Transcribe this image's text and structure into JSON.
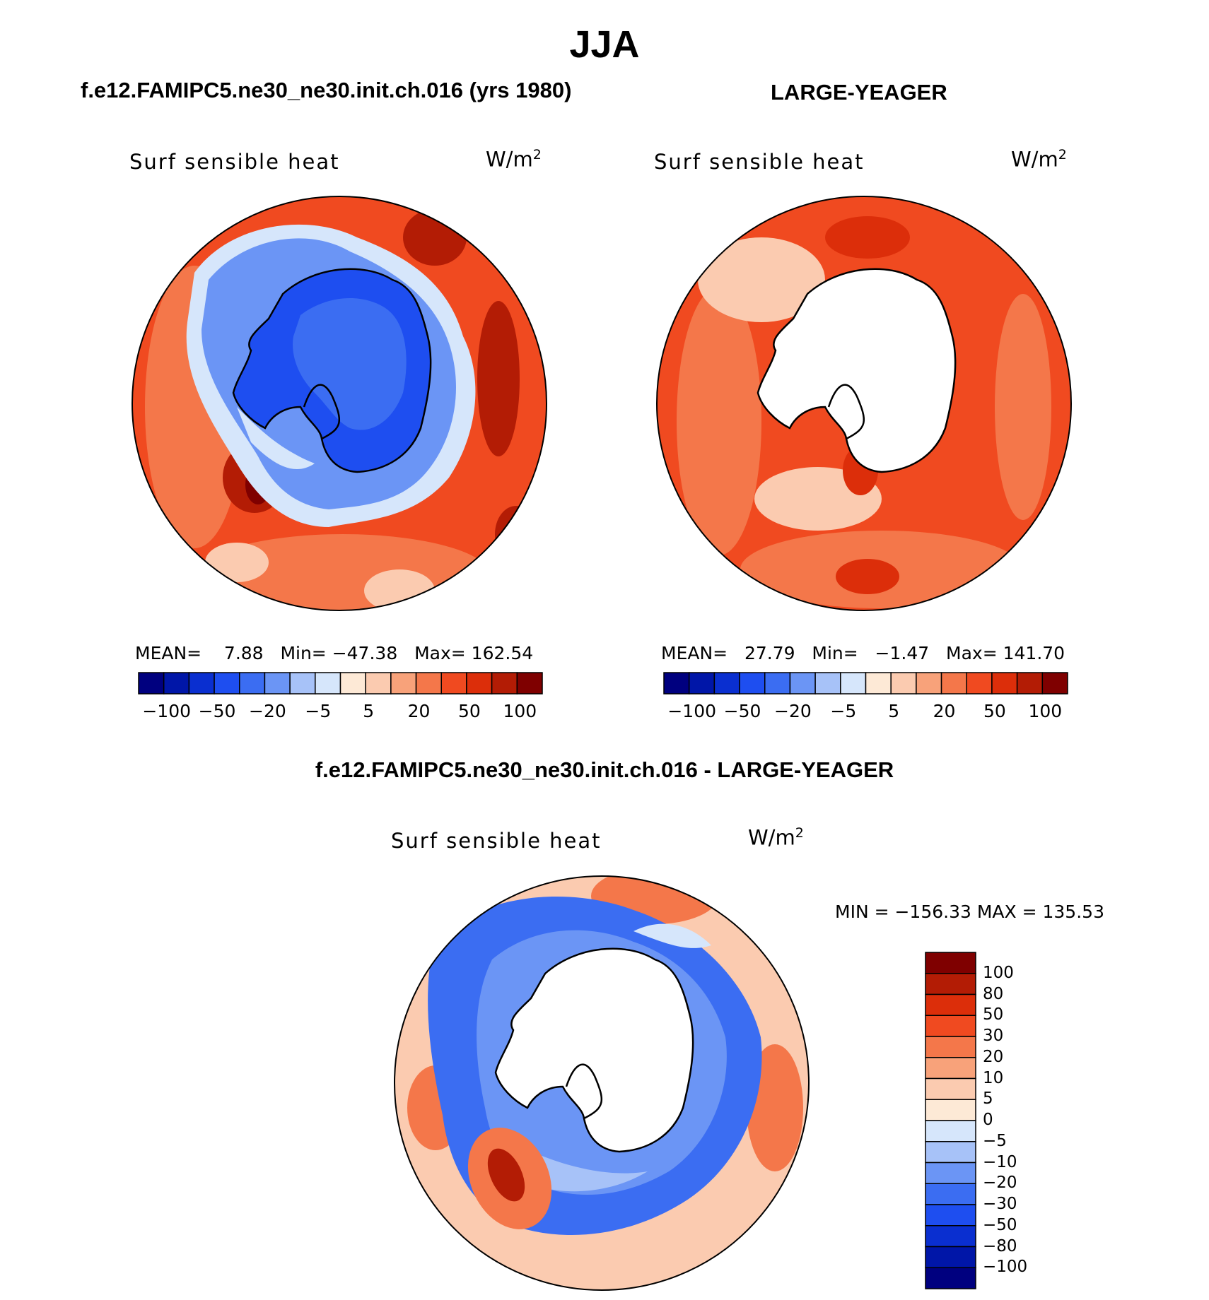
{
  "figure": {
    "title": "JJA",
    "panel_top_left_title": "f.e12.FAMIPC5.ne30_ne30.init.ch.016 (yrs 1980)",
    "panel_top_right_title": "LARGE-YEAGER",
    "panel_bottom_title": "f.e12.FAMIPC5.ne30_ne30.init.ch.016 - LARGE-YEAGER"
  },
  "panels": [
    {
      "variable": "Surf sensible heat",
      "units": "W/m",
      "units_exp": "2",
      "stats": {
        "mean_label": "MEAN=",
        "mean": "7.88",
        "min_label": "Min=",
        "min": "−47.38",
        "max_label": "Max=",
        "max": "162.54"
      }
    },
    {
      "variable": "Surf sensible heat",
      "units": "W/m",
      "units_exp": "2",
      "stats": {
        "mean_label": "MEAN=",
        "mean": "27.79",
        "min_label": "Min=",
        "min": "−1.47",
        "max_label": "Max=",
        "max": "141.70"
      }
    },
    {
      "variable": "Surf sensible heat",
      "units": "W/m",
      "units_exp": "2",
      "stats_text": "MIN = −156.33  MAX = 135.53"
    }
  ],
  "colorbar_abs": {
    "colors": [
      "#00007f",
      "#0016a8",
      "#0a2fd0",
      "#1e4ef0",
      "#3b6df2",
      "#6b95f5",
      "#a7c2f8",
      "#d6e6fb",
      "#fde9d6",
      "#fbcbb0",
      "#f8a27a",
      "#f4774a",
      "#f04a20",
      "#dc2e0a",
      "#b31c05",
      "#7f0000"
    ],
    "tick_labels": [
      "−100",
      "−50",
      "−20",
      "−5",
      "5",
      "20",
      "50",
      "100"
    ]
  },
  "colorbar_diff": {
    "colors": [
      "#00007f",
      "#0016a8",
      "#0a2fd0",
      "#1e4ef0",
      "#3b6df2",
      "#6b95f5",
      "#a7c2f8",
      "#d6e6fb",
      "#fde9d6",
      "#fbcbb0",
      "#f8a27a",
      "#f4774a",
      "#f04a20",
      "#dc2e0a",
      "#b31c05",
      "#7f0000"
    ],
    "tick_labels": [
      "100",
      "80",
      "50",
      "30",
      "20",
      "10",
      "5",
      "0",
      "−5",
      "−10",
      "−20",
      "−30",
      "−50",
      "−80",
      "−100"
    ]
  },
  "map_fields": {
    "left": {
      "ocean_color": "#f04a20",
      "continent_color": "#1e4ef0",
      "continent_inner_color": "#3b6df2",
      "ice_ring_color": "#6b95f5",
      "ice_edge_color": "#d6e6fb",
      "hot_color": "#b31c05",
      "warm_color": "#f4774a",
      "mild_color": "#fbcbb0"
    },
    "right": {
      "ocean_color": "#f04a20",
      "warm_color": "#f4774a",
      "mild_color": "#fbcbb0",
      "hot_color": "#dc2e0a",
      "land_color": "#ffffff"
    },
    "diff": {
      "outer_color": "#fbcbb0",
      "ring_color": "#3b6df2",
      "ring_light_color": "#6b95f5",
      "ice_edge_color": "#a7c2f8",
      "warm_color": "#f4774a",
      "hot_color": "#b31c05",
      "pale_color": "#d6e6fb",
      "land_color": "#ffffff"
    }
  }
}
